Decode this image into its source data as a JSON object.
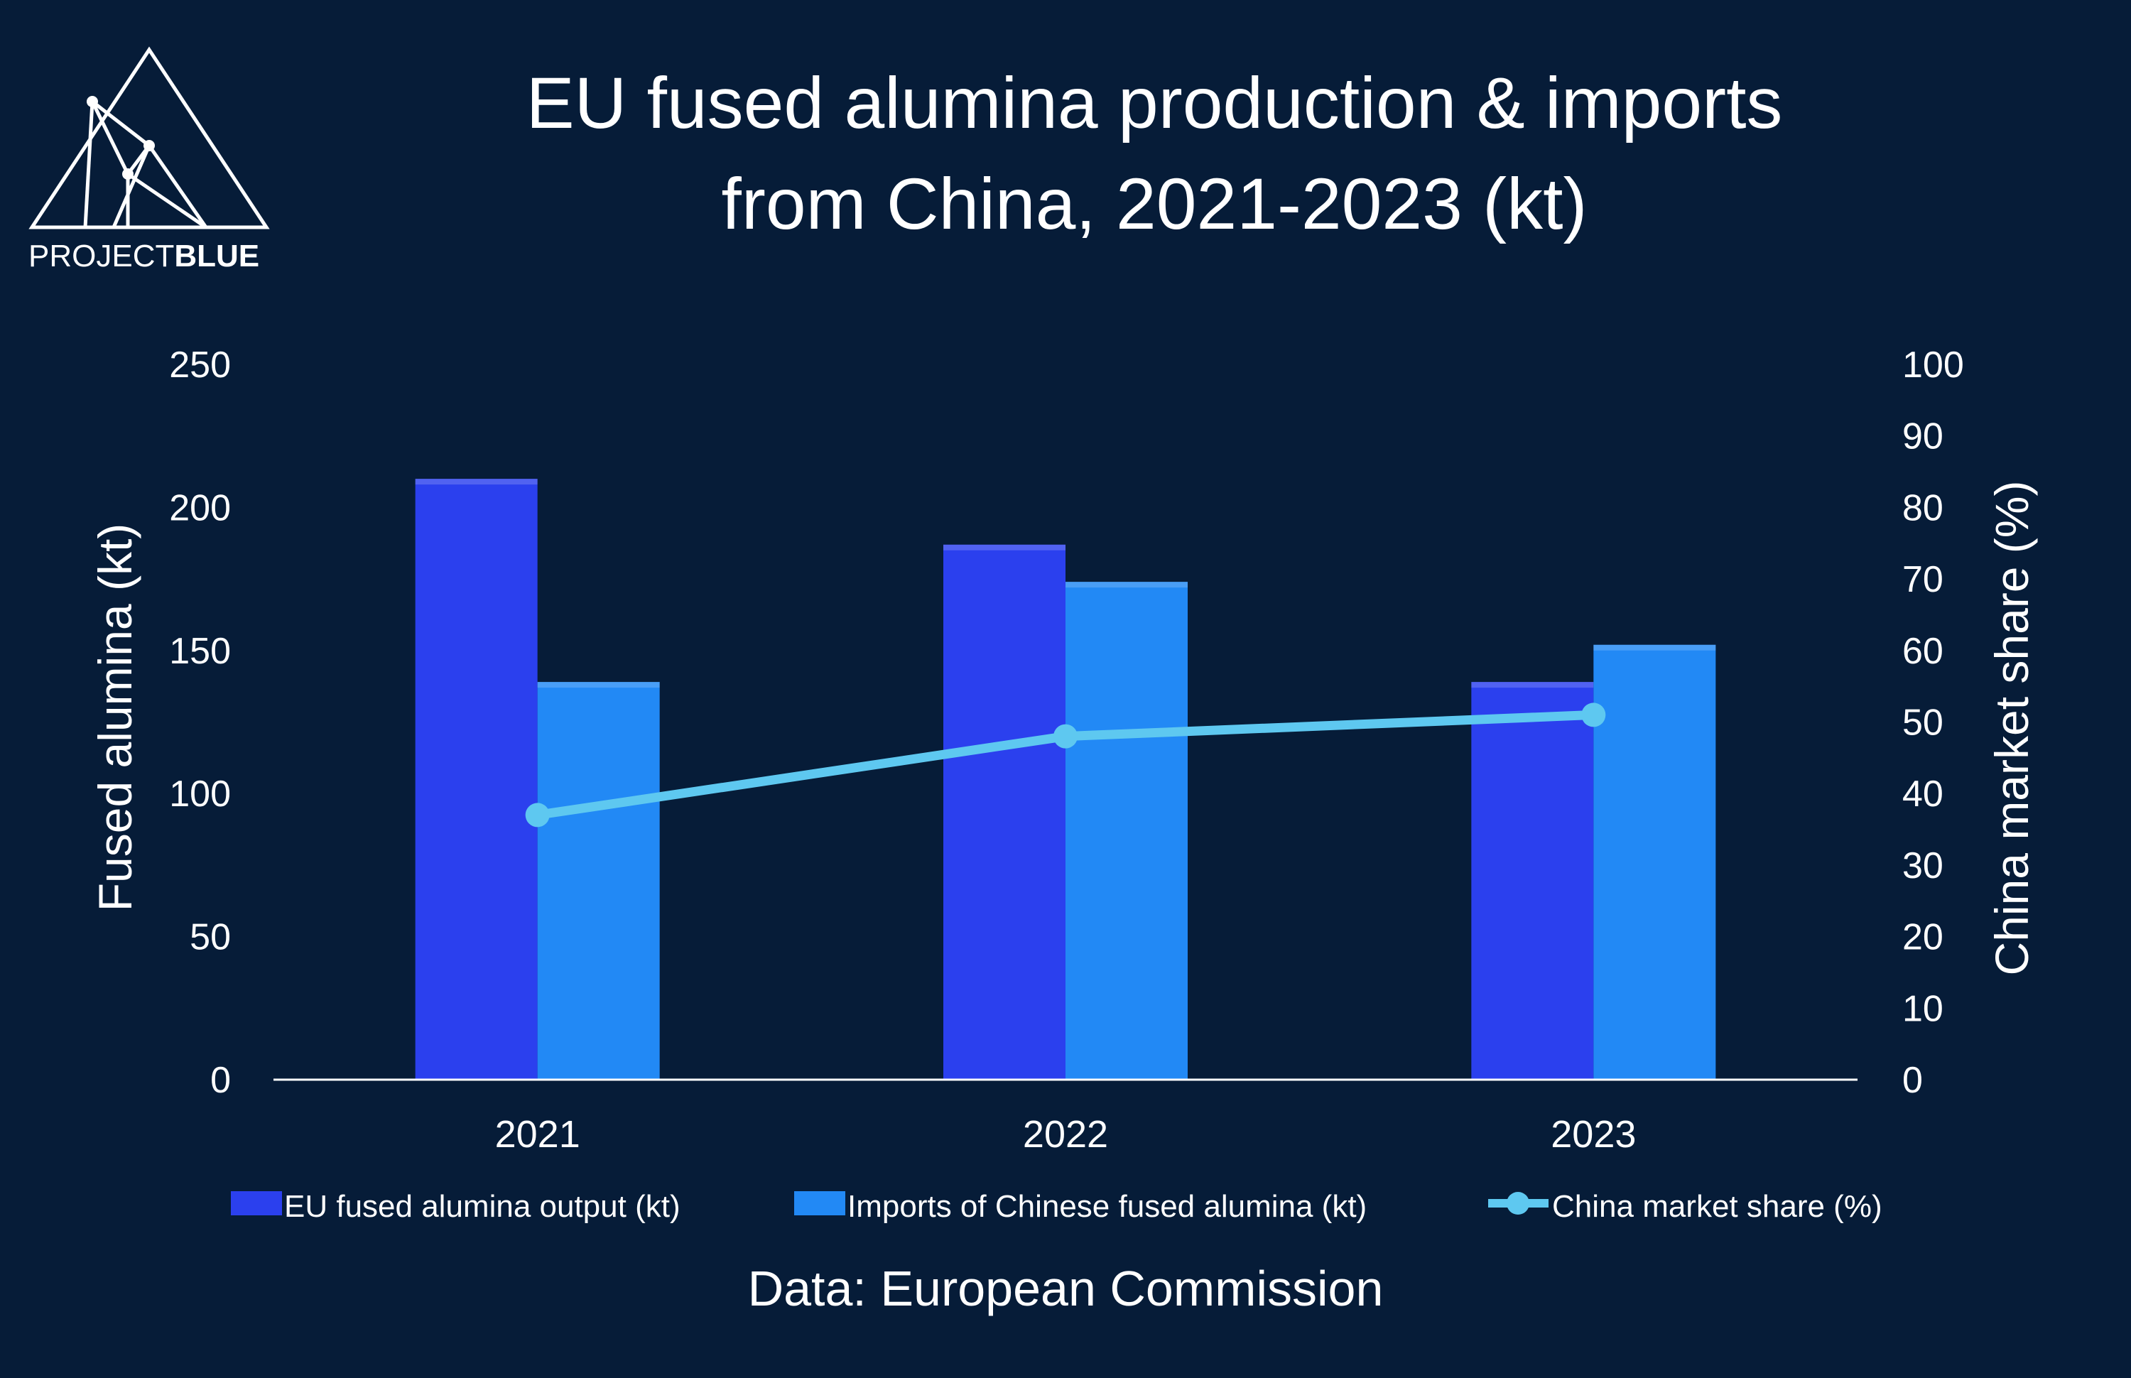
{
  "logo": {
    "text_light": "PROJECT",
    "text_bold": "BLUE"
  },
  "title_line1": "EU fused alumina production & imports",
  "title_line2": "from China, 2021-2023 (kt)",
  "source": "Data: European Commission",
  "colors": {
    "background": "#061c38",
    "eu_output": "#2b40ee",
    "imports": "#2289f5",
    "market_share": "#5ec8f0",
    "axis": "#ffffff"
  },
  "chart_data": {
    "type": "bar",
    "title": "EU fused alumina production & imports from China, 2021-2023 (kt)",
    "categories": [
      "2021",
      "2022",
      "2023"
    ],
    "series": [
      {
        "name": "EU fused alumina output (kt)",
        "type": "bar",
        "axis": "left",
        "values": [
          210,
          187,
          139
        ]
      },
      {
        "name": "Imports of Chinese fused alumina (kt)",
        "type": "bar",
        "axis": "left",
        "values": [
          139,
          174,
          152
        ]
      },
      {
        "name": "China market share (%)",
        "type": "line",
        "axis": "right",
        "values": [
          37,
          48,
          51
        ]
      }
    ],
    "ylabel": "Fused alumina (kt)",
    "y2label": "China market share (%)",
    "ylim": [
      0,
      250
    ],
    "y2lim": [
      0,
      100
    ],
    "yticks": [
      "0",
      "50",
      "100",
      "150",
      "200",
      "250"
    ],
    "y2ticks": [
      "0",
      "10",
      "20",
      "30",
      "40",
      "50",
      "60",
      "70",
      "80",
      "90",
      "100"
    ],
    "legend_position": "bottom",
    "grid": false
  }
}
